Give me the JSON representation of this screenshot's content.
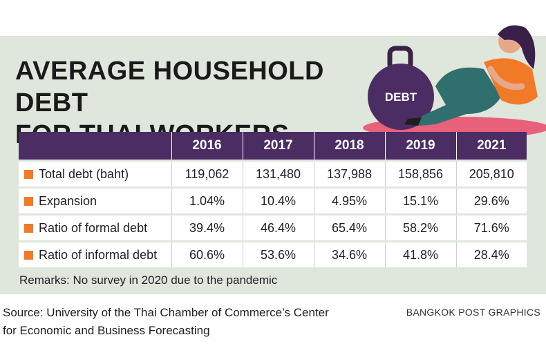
{
  "title_line1": "AVERAGE HOUSEHOLD DEBT",
  "title_line2": "FOR THAI WORKERS",
  "illustration_label": "DEBT",
  "colors": {
    "header_bg": "#4b2d63",
    "bullet": "#f07a26",
    "panel_bg": "#dfe6dc"
  },
  "chart_data": {
    "type": "table",
    "title": "AVERAGE HOUSEHOLD DEBT FOR THAI WORKERS",
    "columns": [
      "2016",
      "2017",
      "2018",
      "2019",
      "2021"
    ],
    "rows": [
      {
        "label": "Total debt (baht)",
        "values": [
          "119,062",
          "131,480",
          "137,988",
          "158,856",
          "205,810"
        ]
      },
      {
        "label": "Expansion",
        "values": [
          "1.04%",
          "10.4%",
          "4.95%",
          "15.1%",
          "29.6%"
        ]
      },
      {
        "label": "Ratio of formal debt",
        "values": [
          "39.4%",
          "46.4%",
          "65.4%",
          "58.2%",
          "71.6%"
        ]
      },
      {
        "label": "Ratio of informal debt",
        "values": [
          "60.6%",
          "53.6%",
          "34.6%",
          "41.8%",
          "28.4%"
        ]
      }
    ]
  },
  "remarks": "Remarks: No survey in 2020 due to the pandemic",
  "source_line1": "Source: University of the Thai Chamber of Commerce’s Center",
  "source_line2": "for Economic and Business Forecasting",
  "credit": "BANGKOK POST GRAPHICS"
}
